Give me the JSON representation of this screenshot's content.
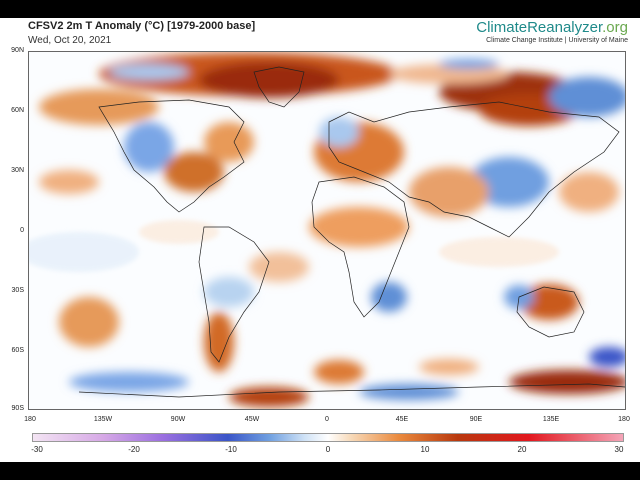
{
  "header": {
    "title": "CFSV2 2m T Anomaly (°C) [1979-2000 base]",
    "date": "Wed, Oct 20, 2021",
    "brand_main": "ClimateReanalyzer",
    "brand_suffix": ".org",
    "institute": "Climate Change Institute | University of Maine"
  },
  "map": {
    "lat_labels": [
      "90N",
      "60N",
      "30N",
      "0",
      "30S",
      "60S",
      "90S"
    ],
    "lon_labels": [
      "180",
      "135W",
      "90W",
      "45W",
      "0",
      "45E",
      "90E",
      "135E",
      "180"
    ]
  },
  "colorbar": {
    "ticks": [
      "-30",
      "-20",
      "-10",
      "0",
      "10",
      "20",
      "30"
    ],
    "colors": {
      "cold_max": "#f3e4f3",
      "cold": "#3a55c8",
      "neutral": "#ffffff",
      "warm": "#ea8a3e",
      "hot": "#b8380e",
      "hot_max": "#f4a5b8"
    }
  }
}
